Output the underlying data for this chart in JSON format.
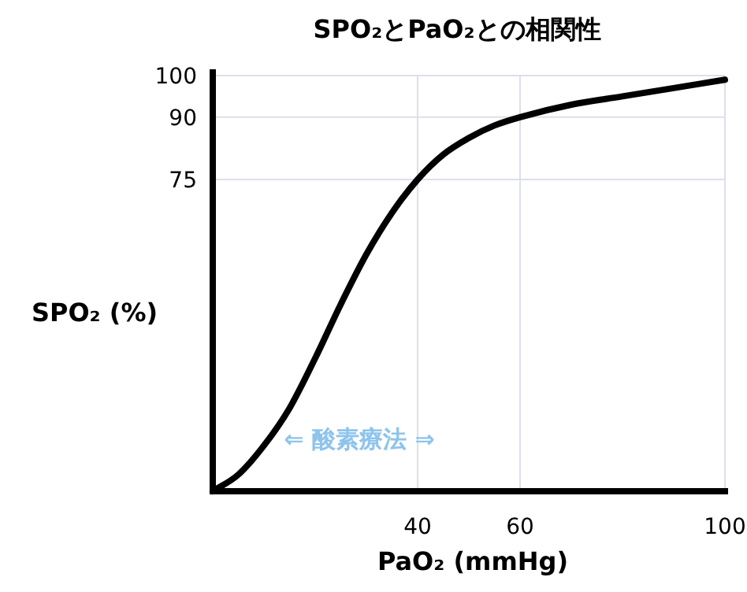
{
  "chart_data": {
    "type": "line",
    "title": "SPO₂とPaO₂との相関性",
    "xlabel": "PaO₂ (mmHg)",
    "ylabel": "SPO₂ (%)",
    "annotations": [
      "⇐ 酸素療法 ⇒"
    ],
    "x": [
      0,
      5,
      10,
      15,
      20,
      25,
      30,
      35,
      40,
      45,
      50,
      55,
      60,
      70,
      80,
      90,
      100
    ],
    "series": [
      {
        "color": "#000000",
        "values": [
          0,
          4,
          11,
          20,
          32,
          45,
          57,
          67,
          75,
          81,
          85,
          88,
          90,
          93,
          95,
          97,
          99
        ]
      }
    ],
    "xlim": [
      0,
      100
    ],
    "xticks": [
      40,
      60,
      100
    ],
    "ylim": [
      0,
      100
    ],
    "yticks": [
      75,
      90,
      100
    ],
    "grid": true,
    "marker": "none",
    "line_style": "solid"
  }
}
